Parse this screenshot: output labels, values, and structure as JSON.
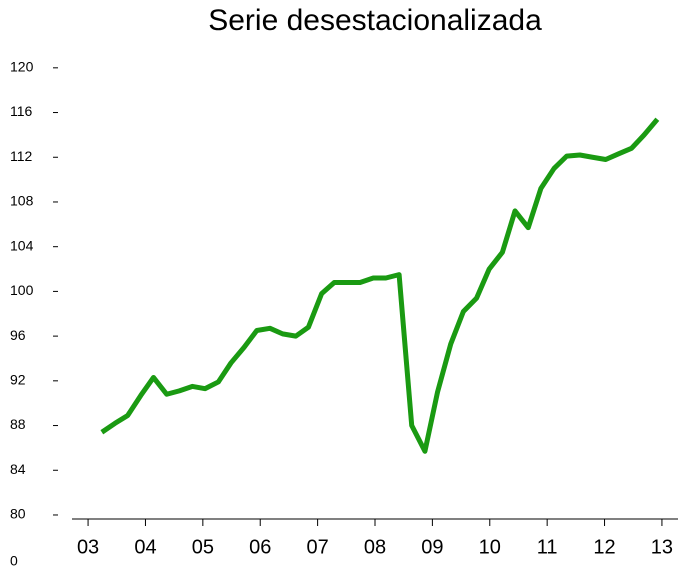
{
  "chart_data": {
    "type": "line",
    "title": "Serie desestacionalizada",
    "x": [
      3.24,
      3.47,
      3.69,
      3.92,
      4.14,
      4.37,
      4.59,
      4.82,
      5.04,
      5.27,
      5.49,
      5.72,
      5.94,
      6.17,
      6.39,
      6.62,
      6.84,
      7.07,
      7.29,
      7.52,
      7.74,
      7.97,
      8.19,
      8.42,
      8.64,
      8.87,
      9.09,
      9.32,
      9.54,
      9.77,
      9.99,
      10.22,
      10.44,
      10.67,
      10.89,
      11.12,
      11.34,
      11.57,
      11.79,
      12.02,
      12.24,
      12.47,
      12.69,
      12.92
    ],
    "series": [
      {
        "color": "#1a9a12",
        "values": [
          87.4,
          88.2,
          88.9,
          90.7,
          92.3,
          90.8,
          91.1,
          91.5,
          91.3,
          91.9,
          93.6,
          95.0,
          96.5,
          96.7,
          96.2,
          96.0,
          96.8,
          99.8,
          100.8,
          100.8,
          100.8,
          101.2,
          101.2,
          101.5,
          88.0,
          85.7,
          91.0,
          95.3,
          98.2,
          99.4,
          102.0,
          103.5,
          107.2,
          105.7,
          109.2,
          111.0,
          112.1,
          112.2,
          112.0,
          111.8,
          112.3,
          112.8,
          114.0,
          115.4
        ]
      }
    ],
    "xlim": [
      2.72,
      13.28
    ],
    "xticks": [
      {
        "value": 3,
        "label": "03"
      },
      {
        "value": 4,
        "label": "04"
      },
      {
        "value": 5,
        "label": "05"
      },
      {
        "value": 6,
        "label": "06"
      },
      {
        "value": 7,
        "label": "07"
      },
      {
        "value": 8,
        "label": "08"
      },
      {
        "value": 9,
        "label": "09"
      },
      {
        "value": 10,
        "label": "10"
      },
      {
        "value": 11,
        "label": "11"
      },
      {
        "value": 12,
        "label": "12"
      },
      {
        "value": 13,
        "label": "13"
      }
    ],
    "ylim": [
      79.64,
      120.7
    ],
    "yticks": [
      80,
      84,
      88,
      92,
      96,
      100,
      104,
      108,
      112,
      116,
      120
    ],
    "axis_break_label": "0",
    "grid": false
  }
}
